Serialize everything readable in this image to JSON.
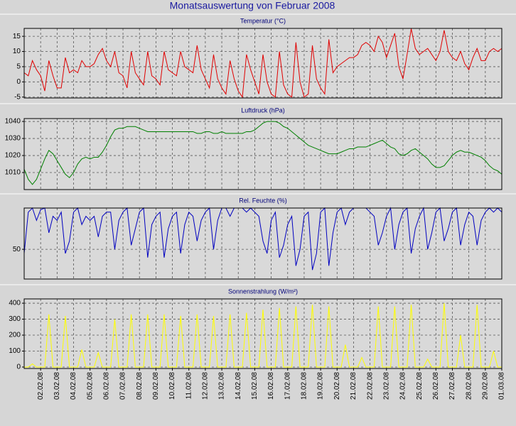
{
  "title": "Monatsauswertung von Februar 2008",
  "chart_data": [
    {
      "type": "line",
      "title": "Temperatur (°C)",
      "grid": true,
      "xlim": [
        0,
        696
      ],
      "ylim": [
        -5.3,
        17.6
      ],
      "yticks": [
        -5,
        0,
        5,
        10,
        15
      ],
      "x": [
        0,
        6,
        12,
        18,
        24,
        30,
        36,
        42,
        48,
        54,
        60,
        66,
        72,
        78,
        84,
        90,
        96,
        102,
        108,
        114,
        120,
        126,
        132,
        138,
        144,
        150,
        156,
        162,
        168,
        174,
        180,
        186,
        192,
        198,
        204,
        210,
        216,
        222,
        228,
        234,
        240,
        246,
        252,
        258,
        264,
        270,
        276,
        282,
        288,
        294,
        300,
        306,
        312,
        318,
        324,
        330,
        336,
        342,
        348,
        354,
        360,
        366,
        372,
        378,
        384,
        390,
        396,
        402,
        408,
        414,
        420,
        426,
        432,
        438,
        444,
        450,
        456,
        462,
        468,
        474,
        480,
        486,
        492,
        498,
        504,
        510,
        516,
        522,
        528,
        534,
        540,
        546,
        552,
        558,
        564,
        570,
        576,
        582,
        588,
        594,
        600,
        606,
        612,
        618,
        624,
        630,
        636,
        642,
        648,
        654,
        660,
        666,
        672,
        678,
        684,
        690,
        696
      ],
      "series": [
        {
          "name": "Temperatur",
          "color": "#e00000",
          "values": [
            3,
            2,
            7,
            4,
            2,
            -3,
            7,
            2,
            -2,
            -2,
            8,
            3,
            4,
            3,
            7,
            5,
            5,
            6,
            9,
            11,
            7,
            5,
            10,
            3,
            2,
            -2,
            10,
            3,
            1,
            -1,
            10,
            2,
            1,
            -1,
            10,
            4,
            3,
            2,
            10,
            5,
            4,
            3,
            12,
            4,
            1,
            -2,
            9,
            1,
            -2,
            -4,
            7,
            1,
            -3,
            -5,
            9,
            4,
            0,
            -4,
            9,
            0,
            -4,
            -5,
            10,
            -1,
            -4,
            -5,
            13,
            0,
            -5,
            -4,
            12,
            1,
            -2,
            -4,
            14,
            3,
            5,
            6,
            7,
            8,
            8,
            9,
            12,
            13,
            12,
            10,
            15,
            13,
            8,
            12,
            16,
            5,
            1,
            9,
            17.5,
            11,
            9,
            10,
            11,
            9,
            7,
            10,
            17,
            10,
            8,
            7,
            10,
            6,
            4,
            8,
            11,
            7,
            7,
            10,
            11,
            10,
            11
          ]
        }
      ]
    },
    {
      "type": "line",
      "title": "Luftdruck (hPa)",
      "grid": true,
      "xlim": [
        0,
        696
      ],
      "ylim": [
        1000,
        1041.7
      ],
      "yticks": [
        1010,
        1020,
        1030,
        1040
      ],
      "x": [
        0,
        6,
        12,
        18,
        24,
        30,
        36,
        42,
        48,
        54,
        60,
        66,
        72,
        78,
        84,
        90,
        96,
        102,
        108,
        114,
        120,
        126,
        132,
        138,
        144,
        150,
        156,
        162,
        168,
        174,
        180,
        186,
        192,
        198,
        204,
        210,
        216,
        222,
        228,
        234,
        240,
        246,
        252,
        258,
        264,
        270,
        276,
        282,
        288,
        294,
        300,
        306,
        312,
        318,
        324,
        330,
        336,
        342,
        348,
        354,
        360,
        366,
        372,
        378,
        384,
        390,
        396,
        402,
        408,
        414,
        420,
        426,
        432,
        438,
        444,
        450,
        456,
        462,
        468,
        474,
        480,
        486,
        492,
        498,
        504,
        510,
        516,
        522,
        528,
        534,
        540,
        546,
        552,
        558,
        564,
        570,
        576,
        582,
        588,
        594,
        600,
        606,
        612,
        618,
        624,
        630,
        636,
        642,
        648,
        654,
        660,
        666,
        672,
        678,
        684,
        690,
        696
      ],
      "series": [
        {
          "name": "Luftdruck",
          "color": "#008000",
          "values": [
            1012,
            1006,
            1003,
            1006,
            1012,
            1018,
            1023,
            1021,
            1017,
            1013,
            1009,
            1007,
            1010,
            1015,
            1018,
            1019,
            1018,
            1019,
            1019,
            1022,
            1026,
            1031,
            1035,
            1036,
            1036,
            1037,
            1037,
            1037,
            1036,
            1035,
            1034,
            1034,
            1034,
            1034,
            1034,
            1034,
            1034,
            1034,
            1034,
            1034,
            1034,
            1034,
            1033,
            1033,
            1034,
            1034,
            1033,
            1033,
            1034,
            1033,
            1033,
            1033,
            1033,
            1033,
            1034,
            1034,
            1035,
            1037,
            1039,
            1040,
            1040,
            1040,
            1039,
            1037,
            1036,
            1034,
            1032,
            1030,
            1028,
            1026,
            1025,
            1024,
            1023,
            1022,
            1021,
            1021,
            1021,
            1022,
            1023,
            1024,
            1024,
            1025,
            1025,
            1025,
            1026,
            1027,
            1028,
            1029,
            1027,
            1025,
            1024,
            1021,
            1020,
            1021,
            1023,
            1024,
            1022,
            1020,
            1018,
            1015,
            1013,
            1013,
            1014,
            1017,
            1020,
            1022,
            1023,
            1022,
            1022,
            1021,
            1020,
            1019,
            1017,
            1014,
            1012,
            1011,
            1009
          ]
        }
      ]
    },
    {
      "type": "line",
      "title": "Rel. Feuchte (%)",
      "grid": true,
      "xlim": [
        0,
        696
      ],
      "ylim": [
        14,
        100
      ],
      "yticks": [
        50
      ],
      "x": [
        0,
        6,
        12,
        18,
        24,
        30,
        36,
        42,
        48,
        54,
        60,
        66,
        72,
        78,
        84,
        90,
        96,
        102,
        108,
        114,
        120,
        126,
        132,
        138,
        144,
        150,
        156,
        162,
        168,
        174,
        180,
        186,
        192,
        198,
        204,
        210,
        216,
        222,
        228,
        234,
        240,
        246,
        252,
        258,
        264,
        270,
        276,
        282,
        288,
        294,
        300,
        306,
        312,
        318,
        324,
        330,
        336,
        342,
        348,
        354,
        360,
        366,
        372,
        378,
        384,
        390,
        396,
        402,
        408,
        414,
        420,
        426,
        432,
        438,
        444,
        450,
        456,
        462,
        468,
        474,
        480,
        486,
        492,
        498,
        504,
        510,
        516,
        522,
        528,
        534,
        540,
        546,
        552,
        558,
        564,
        570,
        576,
        582,
        588,
        594,
        600,
        606,
        612,
        618,
        624,
        630,
        636,
        642,
        648,
        654,
        660,
        666,
        672,
        678,
        684,
        690,
        696
      ],
      "series": [
        {
          "name": "Rel. Feuchte",
          "color": "#0000c0",
          "values": [
            45,
            95,
            100,
            85,
            98,
            100,
            70,
            90,
            85,
            95,
            45,
            60,
            95,
            100,
            80,
            90,
            85,
            90,
            65,
            90,
            95,
            95,
            50,
            85,
            95,
            100,
            55,
            75,
            95,
            100,
            40,
            80,
            90,
            95,
            40,
            75,
            90,
            95,
            45,
            80,
            95,
            90,
            60,
            85,
            95,
            100,
            50,
            85,
            100,
            100,
            90,
            100,
            100,
            100,
            95,
            100,
            95,
            90,
            60,
            45,
            85,
            95,
            40,
            55,
            80,
            90,
            30,
            50,
            90,
            95,
            25,
            45,
            95,
            100,
            30,
            70,
            95,
            100,
            80,
            95,
            100,
            100,
            100,
            100,
            95,
            90,
            55,
            70,
            90,
            100,
            50,
            80,
            95,
            100,
            45,
            75,
            90,
            100,
            50,
            70,
            95,
            100,
            60,
            75,
            95,
            100,
            55,
            80,
            95,
            90,
            55,
            85,
            95,
            100,
            95,
            100,
            95
          ]
        }
      ]
    },
    {
      "type": "line",
      "title": "Sonnenstrahlung (W/m²)",
      "grid": true,
      "xlim": [
        0,
        696
      ],
      "ylim": [
        -9,
        427
      ],
      "yticks": [
        0,
        100,
        200,
        300,
        400
      ],
      "xticks": [
        {
          "value": 24,
          "label": "02.02.08"
        },
        {
          "value": 48,
          "label": "03.02.08"
        },
        {
          "value": 72,
          "label": "04.02.08"
        },
        {
          "value": 96,
          "label": "05.02.08"
        },
        {
          "value": 120,
          "label": "06.02.08"
        },
        {
          "value": 144,
          "label": "07.02.08"
        },
        {
          "value": 168,
          "label": "08.02.08"
        },
        {
          "value": 192,
          "label": "09.02.08"
        },
        {
          "value": 216,
          "label": "10.02.08"
        },
        {
          "value": 240,
          "label": "11.02.08"
        },
        {
          "value": 264,
          "label": "12.02.08"
        },
        {
          "value": 288,
          "label": "13.02.08"
        },
        {
          "value": 312,
          "label": "14.02.08"
        },
        {
          "value": 336,
          "label": "15.02.08"
        },
        {
          "value": 360,
          "label": "16.02.08"
        },
        {
          "value": 384,
          "label": "17.02.08"
        },
        {
          "value": 408,
          "label": "18.02.08"
        },
        {
          "value": 432,
          "label": "19.02.08"
        },
        {
          "value": 456,
          "label": "20.02.08"
        },
        {
          "value": 480,
          "label": "21.02.08"
        },
        {
          "value": 504,
          "label": "22.02.08"
        },
        {
          "value": 528,
          "label": "23.02.08"
        },
        {
          "value": 552,
          "label": "24.02.08"
        },
        {
          "value": 576,
          "label": "25.02.08"
        },
        {
          "value": 600,
          "label": "26.02.08"
        },
        {
          "value": 624,
          "label": "27.02.08"
        },
        {
          "value": 648,
          "label": "28.02.08"
        },
        {
          "value": 672,
          "label": "29.02.08"
        },
        {
          "value": 696,
          "label": "01.03.08"
        }
      ],
      "x": [
        0,
        6,
        12,
        18,
        24,
        30,
        36,
        42,
        48,
        54,
        60,
        66,
        72,
        78,
        84,
        90,
        96,
        102,
        108,
        114,
        120,
        126,
        132,
        138,
        144,
        150,
        156,
        162,
        168,
        174,
        180,
        186,
        192,
        198,
        204,
        210,
        216,
        222,
        228,
        234,
        240,
        246,
        252,
        258,
        264,
        270,
        276,
        282,
        288,
        294,
        300,
        306,
        312,
        318,
        324,
        330,
        336,
        342,
        348,
        354,
        360,
        366,
        372,
        378,
        384,
        390,
        396,
        402,
        408,
        414,
        420,
        426,
        432,
        438,
        444,
        450,
        456,
        462,
        468,
        474,
        480,
        486,
        492,
        498,
        504,
        510,
        516,
        522,
        528,
        534,
        540,
        546,
        552,
        558,
        564,
        570,
        576,
        582,
        588,
        594,
        600,
        606,
        612,
        618,
        624,
        630,
        636,
        642,
        648,
        654,
        660,
        666,
        672,
        678,
        684,
        690,
        696
      ],
      "series": [
        {
          "name": "Sonnenstrahlung",
          "color": "#ffff00",
          "values": [
            0,
            0,
            20,
            0,
            0,
            0,
            330,
            0,
            0,
            0,
            320,
            0,
            0,
            0,
            110,
            0,
            0,
            0,
            90,
            0,
            0,
            0,
            300,
            0,
            0,
            0,
            330,
            0,
            0,
            0,
            330,
            0,
            0,
            0,
            330,
            0,
            0,
            0,
            320,
            0,
            0,
            0,
            330,
            0,
            0,
            0,
            320,
            0,
            0,
            0,
            330,
            0,
            0,
            0,
            340,
            0,
            0,
            0,
            360,
            0,
            0,
            0,
            370,
            0,
            0,
            0,
            380,
            0,
            0,
            0,
            390,
            0,
            0,
            0,
            380,
            0,
            0,
            0,
            140,
            0,
            0,
            0,
            60,
            0,
            0,
            0,
            380,
            0,
            0,
            0,
            380,
            0,
            0,
            0,
            390,
            0,
            0,
            0,
            50,
            0,
            0,
            0,
            400,
            0,
            0,
            0,
            200,
            0,
            0,
            0,
            390,
            0,
            0,
            0,
            100,
            0,
            0
          ]
        }
      ]
    }
  ]
}
